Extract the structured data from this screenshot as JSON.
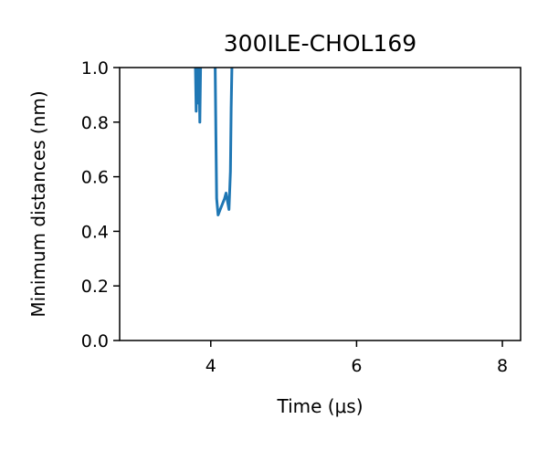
{
  "chart_data": {
    "type": "line",
    "title": "300ILE-CHOL169",
    "xlabel": "Time (μs)",
    "ylabel": "Minimum distances (nm)",
    "xlim": [
      2.75,
      8.25
    ],
    "ylim": [
      0.0,
      1.0
    ],
    "xticks": [
      4,
      6,
      8
    ],
    "xtick_labels": [
      "4",
      "6",
      "8"
    ],
    "yticks": [
      0.0,
      0.2,
      0.4,
      0.6,
      0.8,
      1.0
    ],
    "ytick_labels": [
      "0.0",
      "0.2",
      "0.4",
      "0.6",
      "0.8",
      "1.0"
    ],
    "grid": false,
    "series": [
      {
        "color": "#1f77b4",
        "segments": [
          [
            [
              3.79,
              1.0
            ],
            [
              3.8,
              0.84
            ],
            [
              3.81,
              1.0
            ]
          ],
          [
            [
              3.815,
              1.0
            ],
            [
              3.825,
              0.87
            ],
            [
              3.835,
              1.0
            ]
          ],
          [
            [
              3.84,
              1.0
            ],
            [
              3.85,
              0.8
            ],
            [
              3.86,
              1.0
            ]
          ],
          [
            [
              4.06,
              1.0
            ],
            [
              4.07,
              0.75
            ],
            [
              4.08,
              0.52
            ],
            [
              4.1,
              0.46
            ],
            [
              4.13,
              0.48
            ],
            [
              4.16,
              0.5
            ],
            [
              4.19,
              0.52
            ],
            [
              4.21,
              0.54
            ],
            [
              4.23,
              0.51
            ],
            [
              4.25,
              0.48
            ],
            [
              4.26,
              0.55
            ],
            [
              4.27,
              0.62
            ],
            [
              4.28,
              0.85
            ],
            [
              4.29,
              1.0
            ]
          ]
        ]
      }
    ]
  }
}
